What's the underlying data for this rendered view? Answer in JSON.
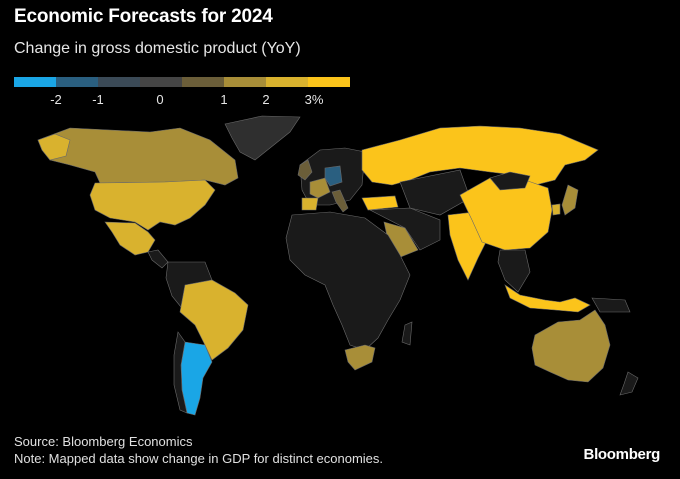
{
  "title": "Economic Forecasts for 2024",
  "subtitle": "Change in gross domestic product (YoY)",
  "legend": {
    "colors": [
      "#1aa6e6",
      "#2a5f80",
      "#3b4a57",
      "#454545",
      "#6b5e39",
      "#a88e38",
      "#d9b22e",
      "#fbc41b"
    ],
    "ticks": [
      "-2",
      "-1",
      "0",
      "1",
      "2",
      "3%"
    ]
  },
  "map_data": {
    "type": "choropleth",
    "metric": "Change in gross domestic product (YoY) forecast for 2024, %",
    "regions": [
      {
        "name": "Canada",
        "color": "#a88e38"
      },
      {
        "name": "United States",
        "color": "#d9b22e"
      },
      {
        "name": "Mexico",
        "color": "#d9b22e"
      },
      {
        "name": "Brazil",
        "color": "#d9b22e"
      },
      {
        "name": "Argentina",
        "color": "#1aa6e6"
      },
      {
        "name": "United Kingdom",
        "color": "#6b5e39"
      },
      {
        "name": "France",
        "color": "#a88e38"
      },
      {
        "name": "Germany",
        "color": "#2a5f80"
      },
      {
        "name": "Spain",
        "color": "#d9b22e"
      },
      {
        "name": "Italy",
        "color": "#6b5e39"
      },
      {
        "name": "Russia",
        "color": "#fbc41b"
      },
      {
        "name": "Turkey",
        "color": "#fbc41b"
      },
      {
        "name": "Saudi Arabia",
        "color": "#a88e38"
      },
      {
        "name": "India",
        "color": "#fbc41b"
      },
      {
        "name": "China",
        "color": "#fbc41b"
      },
      {
        "name": "South Korea",
        "color": "#d9b22e"
      },
      {
        "name": "Japan",
        "color": "#a88e38"
      },
      {
        "name": "Indonesia",
        "color": "#fbc41b"
      },
      {
        "name": "South Africa",
        "color": "#a88e38"
      },
      {
        "name": "Australia",
        "color": "#a88e38"
      }
    ]
  },
  "source": "Source: Bloomberg Economics",
  "note": "Note: Mapped data show change in GDP for distinct economies.",
  "brand": "Bloomberg"
}
